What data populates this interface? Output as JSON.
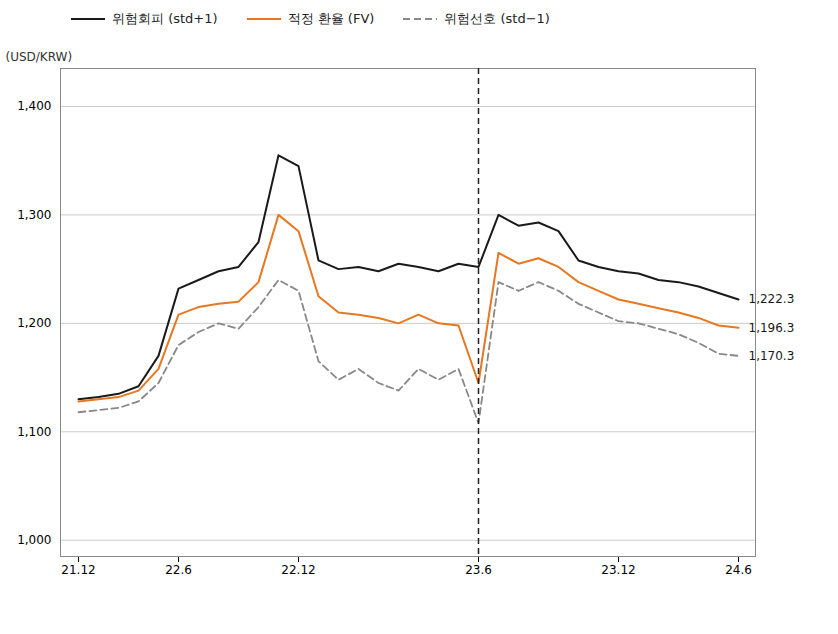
{
  "chart_data": {
    "type": "line",
    "categories": [
      "21.12",
      null,
      null,
      null,
      null,
      "22.6",
      null,
      null,
      null,
      null,
      null,
      "22.12",
      null,
      null,
      null,
      null,
      null,
      null,
      null,
      null,
      "23.6",
      null,
      null,
      null,
      null,
      null,
      null,
      "23.12",
      null,
      null,
      null,
      null,
      null,
      "24.6"
    ],
    "series": [
      {
        "name": "위험회피 (std+1)",
        "color": "#1a1a1a",
        "line_style": "solid",
        "end_label": "1,222.3",
        "values": [
          1130,
          1132,
          1135,
          1142,
          1170,
          1232,
          1240,
          1248,
          1252,
          1275,
          1355,
          1345,
          1258,
          1250,
          1252,
          1248,
          1255,
          1252,
          1248,
          1255,
          1252,
          1300,
          1290,
          1293,
          1285,
          1258,
          1252,
          1248,
          1246,
          1240,
          1238,
          1234,
          1228,
          1222
        ]
      },
      {
        "name": "적정 환율 (FV)",
        "color": "#E87722",
        "line_style": "solid",
        "end_label": "1,196.3",
        "values": [
          1128,
          1130,
          1132,
          1138,
          1158,
          1208,
          1215,
          1218,
          1220,
          1238,
          1300,
          1285,
          1225,
          1210,
          1208,
          1205,
          1200,
          1208,
          1200,
          1198,
          1145,
          1265,
          1255,
          1260,
          1252,
          1238,
          1230,
          1222,
          1218,
          1214,
          1210,
          1205,
          1198,
          1196
        ]
      },
      {
        "name": "위험선호 (std−1)",
        "color": "#888888",
        "line_style": "dashed",
        "end_label": "1,170.3",
        "values": [
          1118,
          1120,
          1122,
          1128,
          1145,
          1180,
          1192,
          1200,
          1195,
          1215,
          1240,
          1230,
          1165,
          1148,
          1158,
          1145,
          1138,
          1158,
          1148,
          1158,
          1108,
          1238,
          1230,
          1238,
          1230,
          1218,
          1210,
          1202,
          1200,
          1195,
          1190,
          1182,
          1172,
          1170
        ]
      }
    ],
    "ylabel": "(USD/KRW)",
    "ylim": [
      985,
      1435
    ],
    "yticks": [
      {
        "value": 1000,
        "label": "1,000"
      },
      {
        "value": 1100,
        "label": "1,100"
      },
      {
        "value": 1200,
        "label": "1,200"
      },
      {
        "value": 1300,
        "label": "1,300"
      },
      {
        "value": 1400,
        "label": "1,400"
      }
    ],
    "grid": true,
    "legend": "top",
    "vline": "23.6"
  }
}
